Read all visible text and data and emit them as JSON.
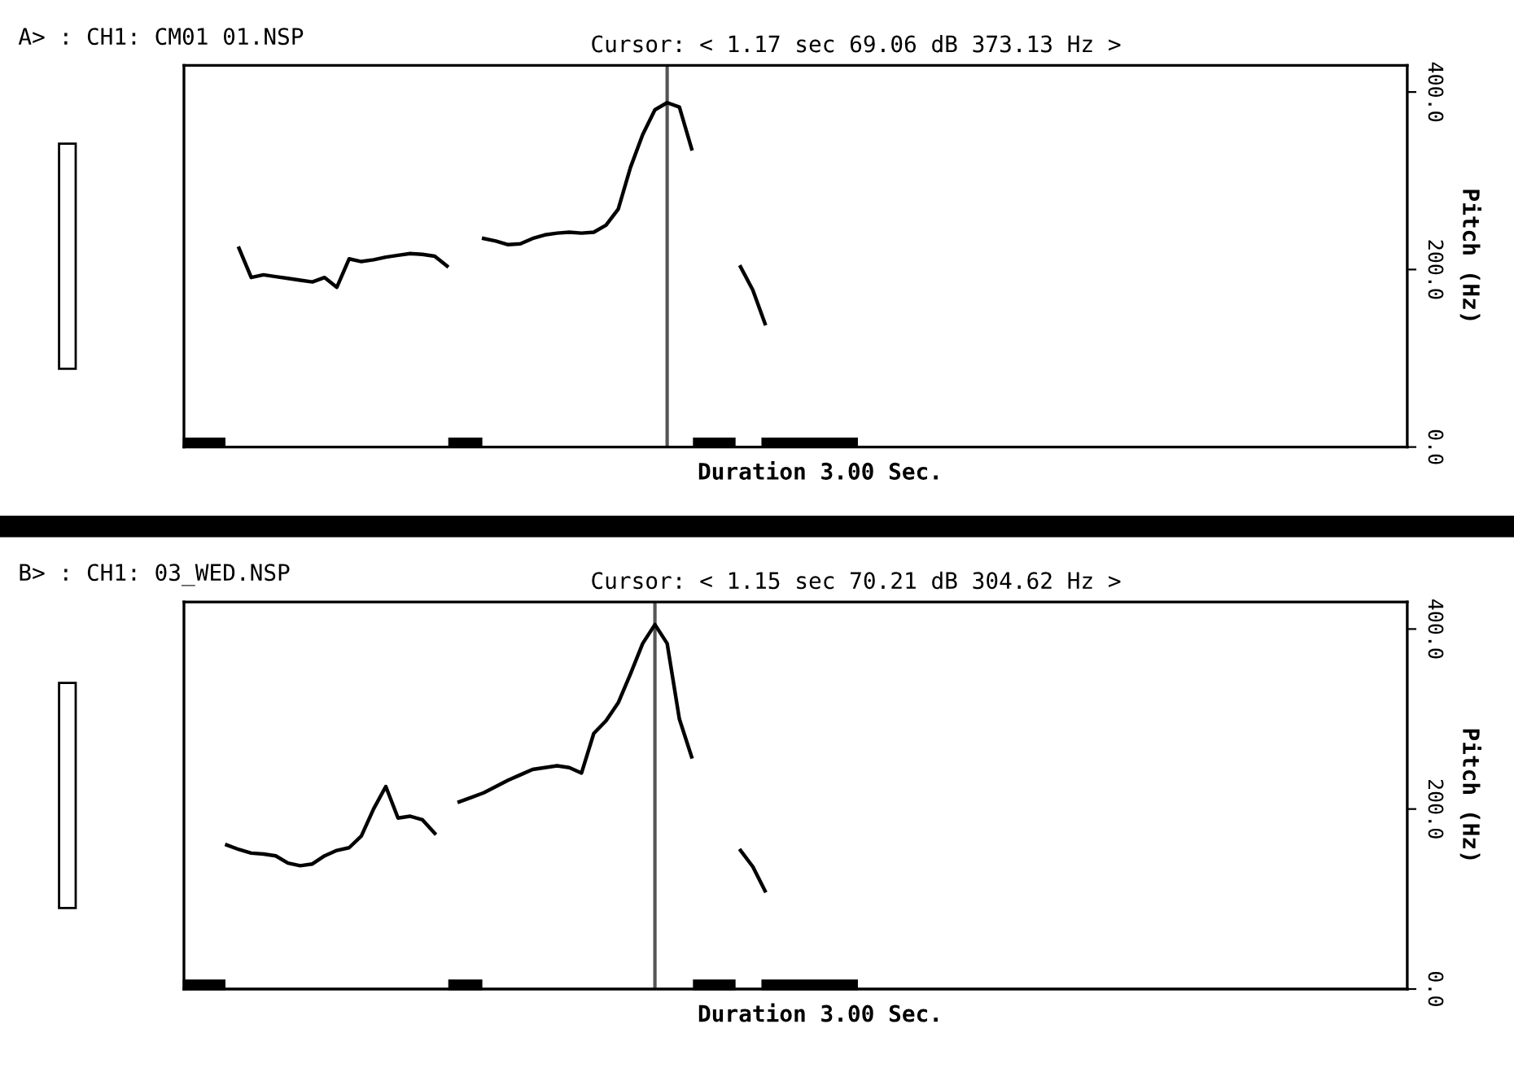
{
  "chart_data": [
    {
      "type": "line",
      "title": "A> : CH1: CM01 01.NSP",
      "xlabel": "Duration 3.00 Sec.",
      "ylabel": "Pitch (Hz)",
      "categories": [
        null,
        null,
        null,
        null,
        null,
        null,
        null,
        null,
        null,
        null,
        null,
        null,
        null,
        null,
        null,
        null,
        null,
        null,
        null,
        null,
        null,
        null,
        null,
        null,
        null,
        null,
        null,
        null,
        null,
        null,
        null,
        null,
        null,
        null,
        null,
        null,
        null,
        null,
        null,
        null,
        null,
        null,
        null,
        null,
        null,
        null,
        null,
        null,
        null,
        null,
        null,
        null,
        null,
        null,
        null,
        null,
        null,
        null,
        null,
        null,
        null,
        null,
        null,
        null,
        null,
        null,
        null,
        null,
        null,
        null,
        null,
        null,
        null,
        null,
        null,
        null,
        null,
        null,
        null,
        null,
        null,
        null,
        null,
        null,
        null,
        null,
        null,
        null,
        null,
        null,
        null,
        null,
        null,
        null,
        null,
        null,
        null,
        null,
        null,
        null
      ],
      "ylim": [
        0,
        430
      ],
      "yticks": [
        {
          "value": 0,
          "label": "0.0"
        },
        {
          "value": 200,
          "label": "200.0"
        },
        {
          "value": 400,
          "label": "400.0"
        }
      ],
      "tick_labels": "y",
      "grid": false,
      "subtitle": "Cursor: < 1.17 sec 69.06 dB 373.13 Hz >",
      "series": [
        {
          "color": "#000000",
          "values": [
            null,
            null,
            null,
            null,
            224,
            191,
            194,
            192,
            190,
            188,
            186,
            191,
            180,
            212,
            209,
            211,
            214,
            216,
            218,
            217,
            215,
            204,
            null,
            null,
            235,
            232,
            228,
            229,
            235,
            239,
            241,
            242,
            241,
            242,
            250,
            268,
            315,
            352,
            380,
            388,
            383,
            336,
            null,
            null,
            null,
            203,
            177,
            139,
            null,
            null,
            null,
            null,
            null,
            null,
            null,
            null,
            null,
            null,
            null,
            null,
            null,
            null,
            null,
            null,
            null,
            null,
            null,
            null,
            null,
            null,
            null,
            null,
            null,
            null,
            null,
            null,
            null,
            null,
            null,
            null,
            null,
            null,
            null,
            null,
            null,
            null,
            null,
            null,
            null,
            null,
            null,
            null,
            null,
            null,
            null,
            null,
            null,
            null,
            null,
            null
          ]
        }
      ]
    },
    {
      "type": "line",
      "title": "B> : CH1: 03_WED.NSP",
      "xlabel": "Duration 3.00 Sec.",
      "ylabel": "Pitch (Hz)",
      "categories": [
        null,
        null,
        null,
        null,
        null,
        null,
        null,
        null,
        null,
        null,
        null,
        null,
        null,
        null,
        null,
        null,
        null,
        null,
        null,
        null,
        null,
        null,
        null,
        null,
        null,
        null,
        null,
        null,
        null,
        null,
        null,
        null,
        null,
        null,
        null,
        null,
        null,
        null,
        null,
        null,
        null,
        null,
        null,
        null,
        null,
        null,
        null,
        null,
        null,
        null,
        null,
        null,
        null,
        null,
        null,
        null,
        null,
        null,
        null,
        null,
        null,
        null,
        null,
        null,
        null,
        null,
        null,
        null,
        null,
        null,
        null,
        null,
        null,
        null,
        null,
        null,
        null,
        null,
        null,
        null,
        null,
        null,
        null,
        null,
        null,
        null,
        null,
        null,
        null,
        null,
        null,
        null,
        null,
        null,
        null,
        null,
        null,
        null,
        null,
        null
      ],
      "ylim": [
        0,
        430
      ],
      "yticks": [
        {
          "value": 0,
          "label": "0.0"
        },
        {
          "value": 200,
          "label": "200.0"
        },
        {
          "value": 400,
          "label": "400.0"
        }
      ],
      "tick_labels": "y",
      "grid": false,
      "subtitle": "Cursor: < 1.15 sec 70.21 dB 304.62 Hz >",
      "series": [
        {
          "color": "#000000",
          "values": [
            null,
            null,
            null,
            160,
            155,
            151,
            150,
            148,
            140,
            137,
            139,
            148,
            154,
            157,
            170,
            200,
            225,
            190,
            192,
            188,
            173,
            null,
            208,
            213,
            218,
            225,
            232,
            238,
            244,
            246,
            248,
            246,
            240,
            284,
            298,
            318,
            350,
            384,
            405,
            384,
            300,
            258,
            null,
            null,
            null,
            154,
            136,
            109,
            null,
            null,
            null,
            null,
            null,
            null,
            null,
            null,
            null,
            null,
            null,
            null,
            null,
            null,
            null,
            null,
            null,
            null,
            null,
            null,
            null,
            null,
            null,
            null,
            null,
            null,
            null,
            null,
            null,
            null,
            null,
            null,
            null,
            null,
            null,
            null,
            null,
            null,
            null,
            null,
            null,
            null,
            null,
            null,
            null,
            null,
            null,
            null,
            null,
            null,
            null,
            null
          ]
        }
      ]
    }
  ]
}
